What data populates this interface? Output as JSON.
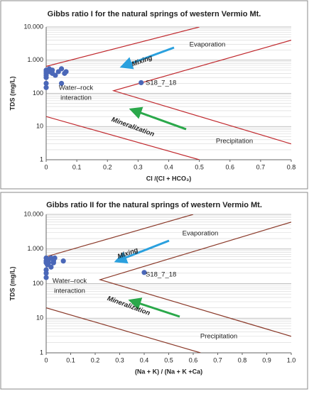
{
  "chart_data": [
    {
      "type": "scatter",
      "title": "Gibbs ratio I  for the natural springs of western Vermio Mt.",
      "xlabel": "Cl /(Cl + HCO₃)",
      "ylabel": "TDS (mg/L)",
      "log_y": true,
      "grid": true,
      "xlim": [
        0,
        0.8
      ],
      "xticks": [
        0,
        0.1,
        0.2,
        0.3,
        0.4,
        0.5,
        0.6,
        0.7,
        0.8
      ],
      "ylim": [
        1,
        10000
      ],
      "yticks": [
        1,
        10,
        100,
        {
          "value": 1000,
          "label": "1.000"
        },
        {
          "value": 10000,
          "label": "10.000"
        }
      ],
      "x": [
        0,
        0,
        0,
        0,
        0,
        0,
        0,
        0.01,
        0.01,
        0.02,
        0.02,
        0.03,
        0.04,
        0.05,
        0.06,
        0.065,
        0.05,
        0.31
      ],
      "series": [
        {
          "color": "#4a67b8",
          "values": [
            500,
            450,
            400,
            350,
            300,
            200,
            150,
            550,
            450,
            500,
            400,
            350,
            450,
            550,
            400,
            450,
            200,
            210
          ]
        }
      ],
      "lines": [
        {
          "color": "#c0282d",
          "x": [
            0,
            0.5
          ],
          "y": [
            650,
            10000
          ]
        },
        {
          "color": "#c0282d",
          "x": [
            0,
            0.5
          ],
          "y": [
            20,
            1
          ]
        },
        {
          "color": "#c0282d",
          "x": [
            0.8,
            0.22,
            0.8
          ],
          "y": [
            4000,
            120,
            3
          ]
        }
      ],
      "annotations": [
        {
          "text": "Evaporation",
          "color": "#3aa0dc"
        },
        {
          "text": "Mixing",
          "color": "#2a5ca8"
        },
        {
          "lines": [
            "Water–rock",
            "interaction"
          ],
          "color": "#e07b1a"
        },
        {
          "text": "Mineralization",
          "color": "#2aa84a"
        },
        {
          "text": "Precipitation",
          "color": "#2aa84a"
        },
        {
          "text": "S18_7_18",
          "color": "#222222"
        }
      ]
    },
    {
      "type": "scatter",
      "title": "Gibbs ratio II for the natural springs of western Vermio Mt.",
      "xlabel": "(Na + K) / (Na + K +Ca)",
      "ylabel": "TDS (mg/L)",
      "log_y": true,
      "grid": true,
      "xlim": [
        0,
        1
      ],
      "xticks": [
        0,
        0.1,
        0.2,
        0.3,
        0.4,
        0.5,
        0.6,
        0.7,
        0.8,
        0.9,
        {
          "value": 1,
          "label": "1.0"
        }
      ],
      "ylim": [
        1,
        10000
      ],
      "yticks": [
        1,
        10,
        100,
        {
          "value": 1000,
          "label": "1.000"
        },
        {
          "value": 10000,
          "label": "10.000"
        }
      ],
      "x": [
        0,
        0,
        0,
        0,
        0,
        0,
        0.005,
        0.01,
        0.01,
        0.02,
        0.02,
        0.03,
        0.03,
        0.035,
        0.07,
        0.4
      ],
      "series": [
        {
          "color": "#4a67b8",
          "values": [
            550,
            450,
            400,
            250,
            200,
            150,
            350,
            500,
            400,
            550,
            300,
            450,
            400,
            550,
            450,
            210
          ]
        }
      ],
      "lines": [
        {
          "color": "#8b3a2a",
          "x": [
            0,
            0.6
          ],
          "y": [
            600,
            10000
          ]
        },
        {
          "color": "#8b3a2a",
          "x": [
            0,
            0.63
          ],
          "y": [
            20,
            1
          ]
        },
        {
          "color": "#8b3a2a",
          "x": [
            1,
            0.22,
            1
          ],
          "y": [
            6000,
            130,
            3
          ]
        }
      ],
      "annotations": [
        {
          "text": "Evaporation",
          "color": "#3aa0dc"
        },
        {
          "text": "Mixing",
          "color": "#2a5ca8"
        },
        {
          "lines": [
            "Water–rock",
            "interaction"
          ],
          "color": "#c48a1a"
        },
        {
          "text": "Mineralization",
          "color": "#2aa84a"
        },
        {
          "text": "Precipitation",
          "color": "#2aa84a"
        },
        {
          "text": "S18_7_18",
          "color": "#222222"
        }
      ]
    }
  ]
}
